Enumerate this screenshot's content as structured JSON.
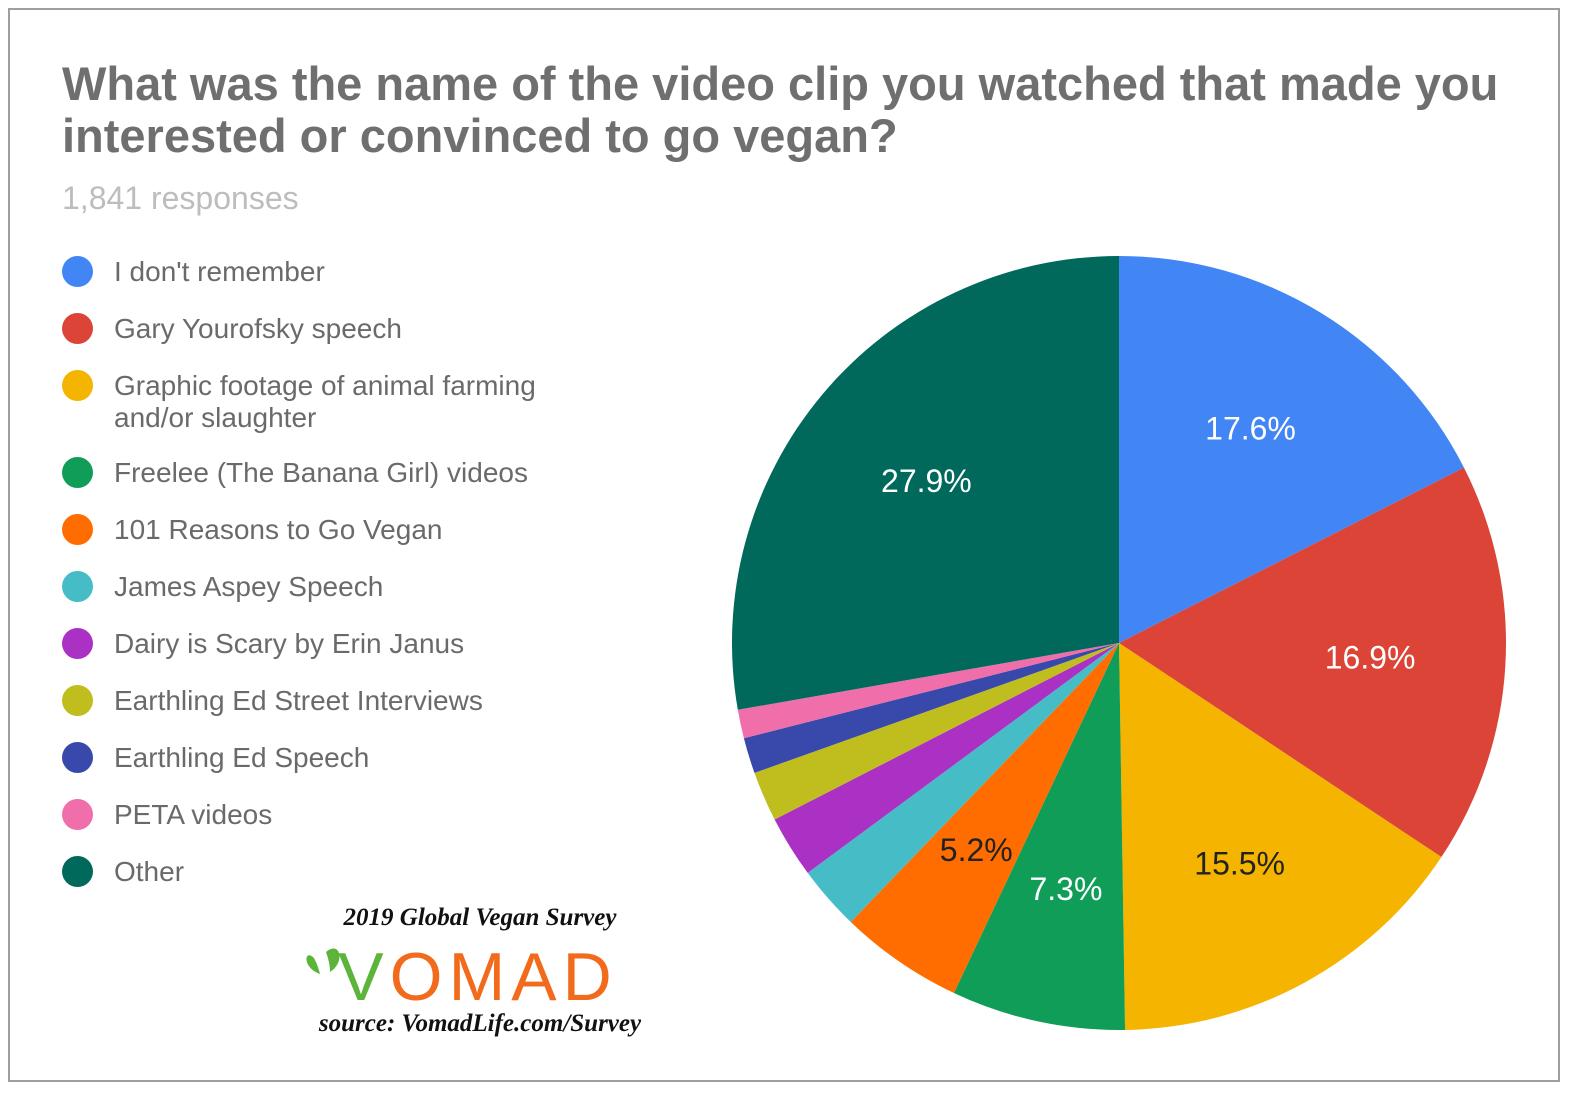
{
  "header": {
    "title": "What was the name of the video clip you watched that made you interested or convinced to go vegan?",
    "responses": "1,841 responses"
  },
  "chart_data": {
    "type": "pie",
    "title": "What was the name of the video clip you watched that made you interested or convinced to go vegan?",
    "subtitle": "1,841 responses",
    "legend_position": "left",
    "slices": [
      {
        "label": "I don't remember",
        "value": 17.6,
        "display": "17.6%",
        "color": "#4285f4",
        "label_color": "#ffffff"
      },
      {
        "label": "Gary Yourofsky speech",
        "value": 16.9,
        "display": "16.9%",
        "color": "#db4437",
        "label_color": "#ffffff"
      },
      {
        "label": "Graphic footage of animal farming and/or slaughter",
        "value": 15.5,
        "display": "15.5%",
        "color": "#f4b400",
        "label_color": "#222222"
      },
      {
        "label": "Freelee (The Banana Girl) videos",
        "value": 7.3,
        "display": "7.3%",
        "color": "#0f9d58",
        "label_color": "#ffffff"
      },
      {
        "label": "101 Reasons to Go Vegan",
        "value": 5.2,
        "display": "5.2%",
        "color": "#ff6d00",
        "label_color": "#222222"
      },
      {
        "label": "James Aspey Speech",
        "value": 2.7,
        "display": "",
        "color": "#46bdc6",
        "label_color": "#ffffff"
      },
      {
        "label": "Dairy is Scary by Erin Janus",
        "value": 2.6,
        "display": "",
        "color": "#ab30c4",
        "label_color": "#ffffff"
      },
      {
        "label": "Earthling Ed Street Interviews",
        "value": 2.1,
        "display": "",
        "color": "#c0bd1e",
        "label_color": "#ffffff"
      },
      {
        "label": "Earthling Ed Speech",
        "value": 1.5,
        "display": "",
        "color": "#3949ab",
        "label_color": "#ffffff"
      },
      {
        "label": "PETA videos",
        "value": 1.2,
        "display": "",
        "color": "#f06ea9",
        "label_color": "#ffffff"
      },
      {
        "label": "Other",
        "value": 27.9,
        "display": "27.9%",
        "color": "#00695c",
        "label_color": "#ffffff"
      }
    ]
  },
  "branding": {
    "survey_title": "2019 Global Vegan Survey",
    "logo_text": "VOMAD",
    "source": "source: VomadLife.com/Survey",
    "logo_green": "#5cb43a",
    "logo_orange": "#f26b1d"
  }
}
